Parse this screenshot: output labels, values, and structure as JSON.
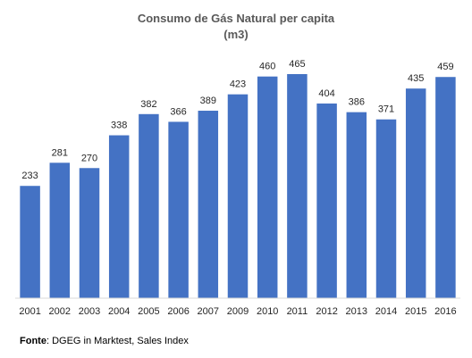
{
  "chart_data": {
    "type": "bar",
    "title": "Consumo de Gás Natural per capita",
    "subtitle": "(m3)",
    "categories": [
      "2001",
      "2002",
      "2003",
      "2004",
      "2005",
      "2006",
      "2007",
      "2009",
      "2010",
      "2011",
      "2012",
      "2013",
      "2014",
      "2015",
      "2016"
    ],
    "values": [
      233,
      281,
      270,
      338,
      382,
      366,
      389,
      423,
      460,
      465,
      404,
      386,
      371,
      435,
      459
    ],
    "bar_color": "#4472C4",
    "axis_color": "#D9D9D9",
    "ylim": [
      0,
      465
    ],
    "grid": false,
    "legend": "none",
    "data_labels": true
  },
  "source": {
    "label": "Fonte",
    "text": ": DGEG in Marktest, Sales Index"
  }
}
